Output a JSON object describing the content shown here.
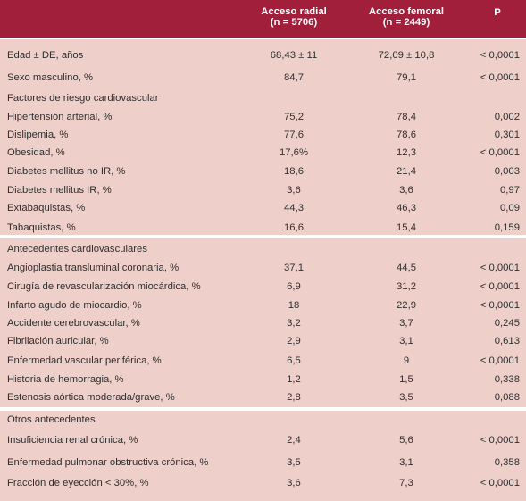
{
  "header": {
    "col_radial_line1": "Acceso radial",
    "col_radial_line2": "(n = 5706)",
    "col_femoral_line1": "Acceso femoral",
    "col_femoral_line2": "(n = 2449)",
    "col_p": "P"
  },
  "rows": [
    {
      "label": "Edad ± DE, años",
      "radial": "68,43 ± 11",
      "femoral": "72,09 ± 10,8",
      "p": "< 0,0001"
    },
    {
      "label": "Sexo masculino, %",
      "radial": "84,7",
      "femoral": "79,1",
      "p": "< 0,0001"
    },
    {
      "label": "Factores de riesgo cardiovascular",
      "radial": "",
      "femoral": "",
      "p": ""
    },
    {
      "label": "Hipertensión arterial, %",
      "radial": "75,2",
      "femoral": "78,4",
      "p": "0,002"
    },
    {
      "label": "Dislipemia, %",
      "radial": "77,6",
      "femoral": "78,6",
      "p": "0,301"
    },
    {
      "label": "Obesidad, %",
      "radial": "17,6%",
      "femoral": "12,3",
      "p": "< 0,0001"
    },
    {
      "label": "Diabetes mellitus no IR, %",
      "radial": "18,6",
      "femoral": "21,4",
      "p": "0,003"
    },
    {
      "label": "Diabetes mellitus IR, %",
      "radial": "3,6",
      "femoral": "3,6",
      "p": "0,97"
    },
    {
      "label": "Extabaquistas, %",
      "radial": "44,3",
      "femoral": "46,3",
      "p": "0,09"
    },
    {
      "label": "Tabaquistas, %",
      "radial": "16,6",
      "femoral": "15,4",
      "p": "0,159"
    },
    {
      "label": "Antecedentes cardiovasculares",
      "radial": "",
      "femoral": "",
      "p": ""
    },
    {
      "label": "Angioplastia transluminal coronaria, %",
      "radial": "37,1",
      "femoral": "44,5",
      "p": "< 0,0001"
    },
    {
      "label": "Cirugía de revascularización miocárdica, %",
      "radial": "6,9",
      "femoral": "31,2",
      "p": "< 0,0001"
    },
    {
      "label": "Infarto agudo de miocardio, %",
      "radial": "18",
      "femoral": "22,9",
      "p": "< 0,0001"
    },
    {
      "label": "Accidente cerebrovascular, %",
      "radial": "3,2",
      "femoral": "3,7",
      "p": "0,245"
    },
    {
      "label": "Fibrilación auricular, %",
      "radial": "2,9",
      "femoral": "3,1",
      "p": "0,613"
    },
    {
      "label": "Enfermedad vascular periférica, %",
      "radial": "6,5",
      "femoral": "9",
      "p": "< 0,0001"
    },
    {
      "label": "Historia de hemorragia, %",
      "radial": "1,2",
      "femoral": "1,5",
      "p": "0,338"
    },
    {
      "label": "Estenosis aórtica moderada/grave, %",
      "radial": "2,8",
      "femoral": "3,5",
      "p": "0,088"
    },
    {
      "label": "Otros antecedentes",
      "radial": "",
      "femoral": "",
      "p": ""
    },
    {
      "label": "Insuficiencia renal crónica, %",
      "radial": "2,4",
      "femoral": "5,6",
      "p": "< 0,0001"
    },
    {
      "label": "Enfermedad pulmonar obstructiva crónica, %",
      "radial": "3,5",
      "femoral": "3,1",
      "p": "0,358"
    },
    {
      "label": "Fracción de eyección < 30%, %",
      "radial": "3,6",
      "femoral": "7,3",
      "p": "< 0,0001"
    }
  ],
  "colors": {
    "header_bg": "#a11f3b",
    "header_text": "#ffffff",
    "body_bg": "#eecfca",
    "separator": "#ffffff"
  }
}
